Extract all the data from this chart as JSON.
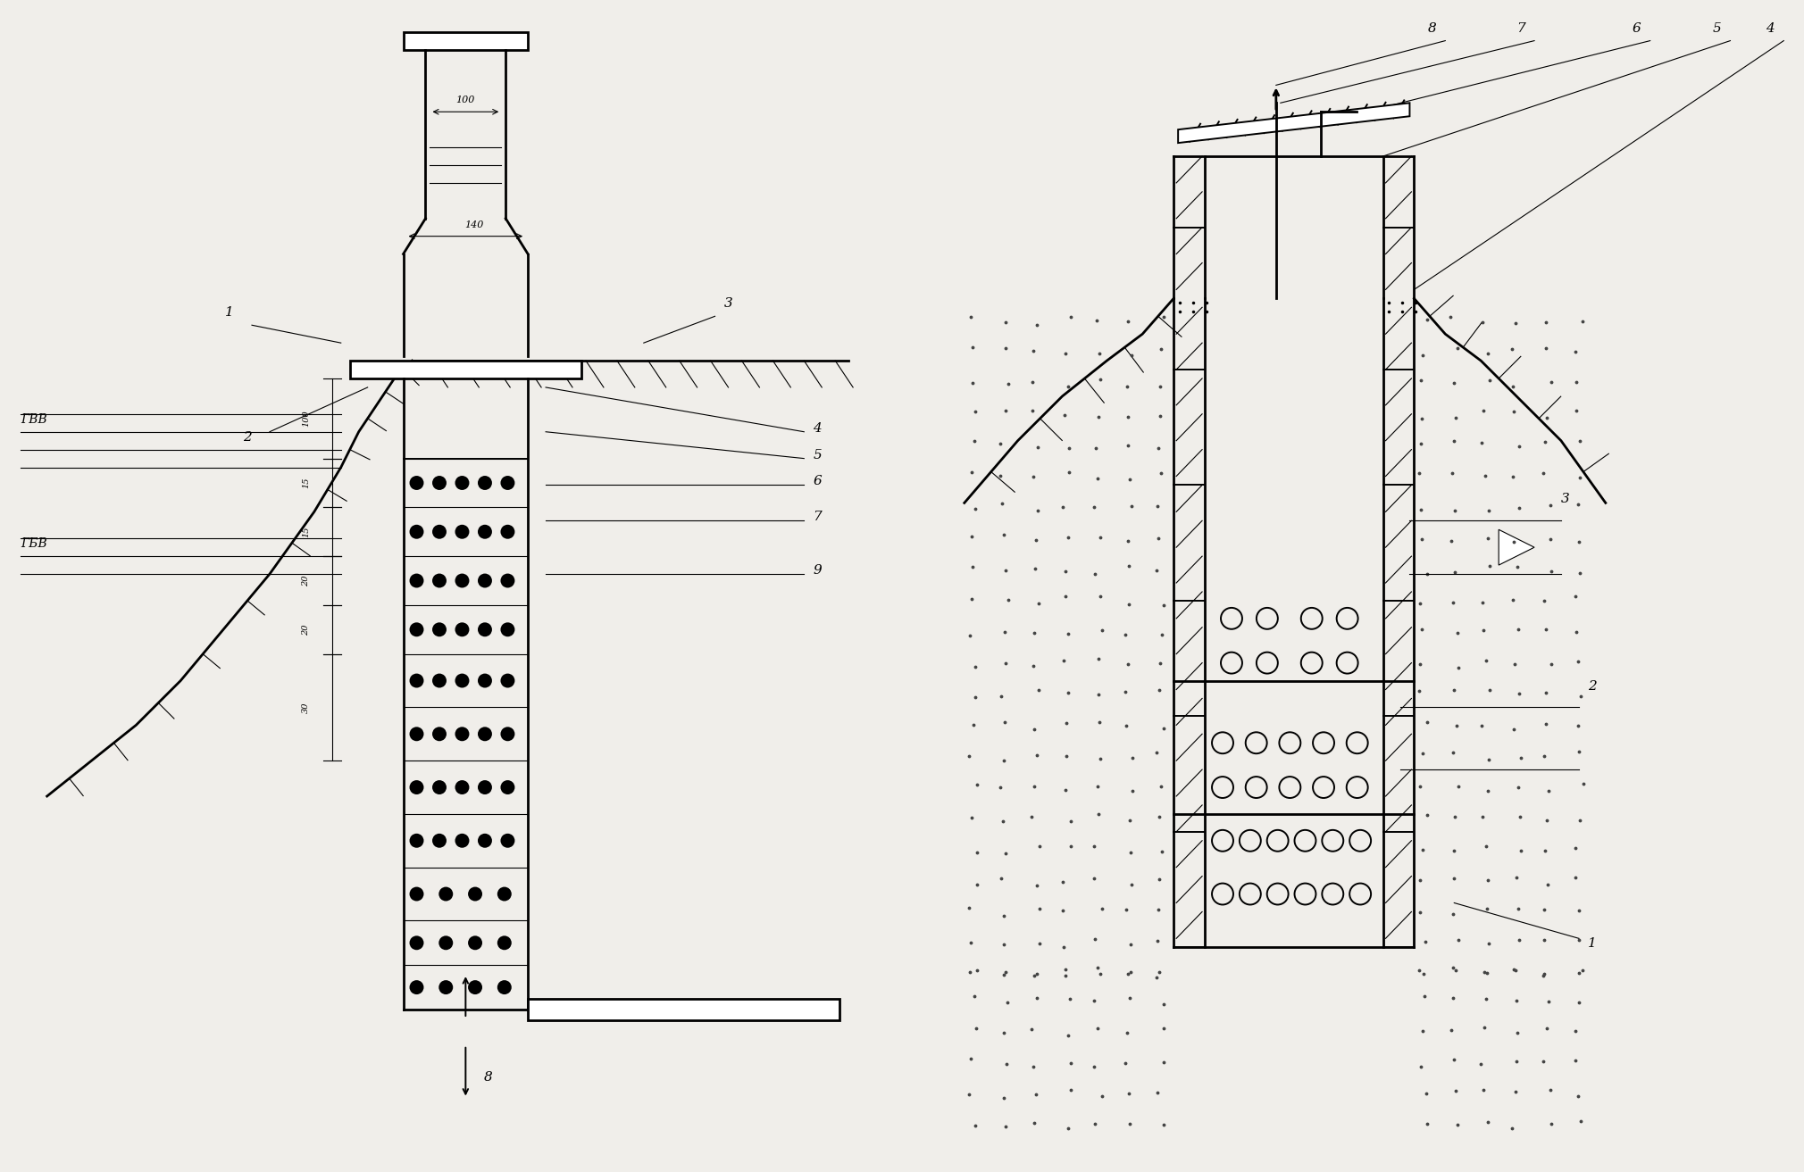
{
  "bg_color": "#f0eeea",
  "line_color": "#000000",
  "fig_width": 20.2,
  "fig_height": 13.13
}
